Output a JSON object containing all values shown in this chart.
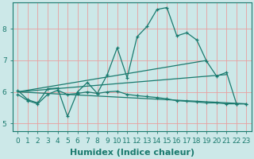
{
  "xlabel": "Humidex (Indice chaleur)",
  "background_color": "#cce8e8",
  "grid_color": "#e8a0a0",
  "line_color": "#1a7a6e",
  "xlim": [
    -0.5,
    23.5
  ],
  "ylim": [
    4.75,
    8.85
  ],
  "xticks": [
    0,
    1,
    2,
    3,
    4,
    5,
    6,
    7,
    8,
    9,
    10,
    11,
    12,
    13,
    14,
    15,
    16,
    17,
    18,
    19,
    20,
    21,
    22,
    23
  ],
  "yticks": [
    5,
    6,
    7,
    8
  ],
  "line1_x": [
    0,
    1,
    2,
    3,
    4,
    5,
    6,
    7,
    8,
    9,
    10,
    11,
    12,
    13,
    14,
    15,
    16,
    17,
    18,
    19,
    20,
    21,
    22,
    23
  ],
  "line1_y": [
    6.05,
    5.75,
    5.65,
    6.1,
    6.12,
    5.22,
    6.0,
    6.3,
    5.95,
    6.55,
    7.4,
    6.45,
    7.75,
    8.08,
    8.62,
    8.68,
    7.78,
    7.88,
    7.65,
    6.97,
    6.5,
    6.62,
    5.62,
    5.62
  ],
  "line2_x": [
    0,
    1,
    2,
    3,
    4,
    5,
    6,
    7,
    8,
    9,
    10,
    11,
    12,
    13,
    14,
    15,
    16,
    17,
    18,
    19,
    20,
    21,
    22,
    23
  ],
  "line2_y": [
    5.92,
    5.72,
    5.62,
    5.92,
    6.05,
    5.92,
    5.95,
    6.0,
    5.95,
    6.0,
    6.02,
    5.92,
    5.88,
    5.85,
    5.82,
    5.78,
    5.72,
    5.7,
    5.68,
    5.65,
    5.65,
    5.62,
    5.62,
    5.62
  ],
  "line3_x": [
    0,
    19
  ],
  "line3_y": [
    6.0,
    7.0
  ],
  "line4_x": [
    0,
    21
  ],
  "line4_y": [
    6.0,
    6.55
  ],
  "line5_x": [
    0,
    23
  ],
  "line5_y": [
    6.0,
    5.62
  ],
  "xlabel_fontsize": 8,
  "tick_fontsize": 6.5
}
